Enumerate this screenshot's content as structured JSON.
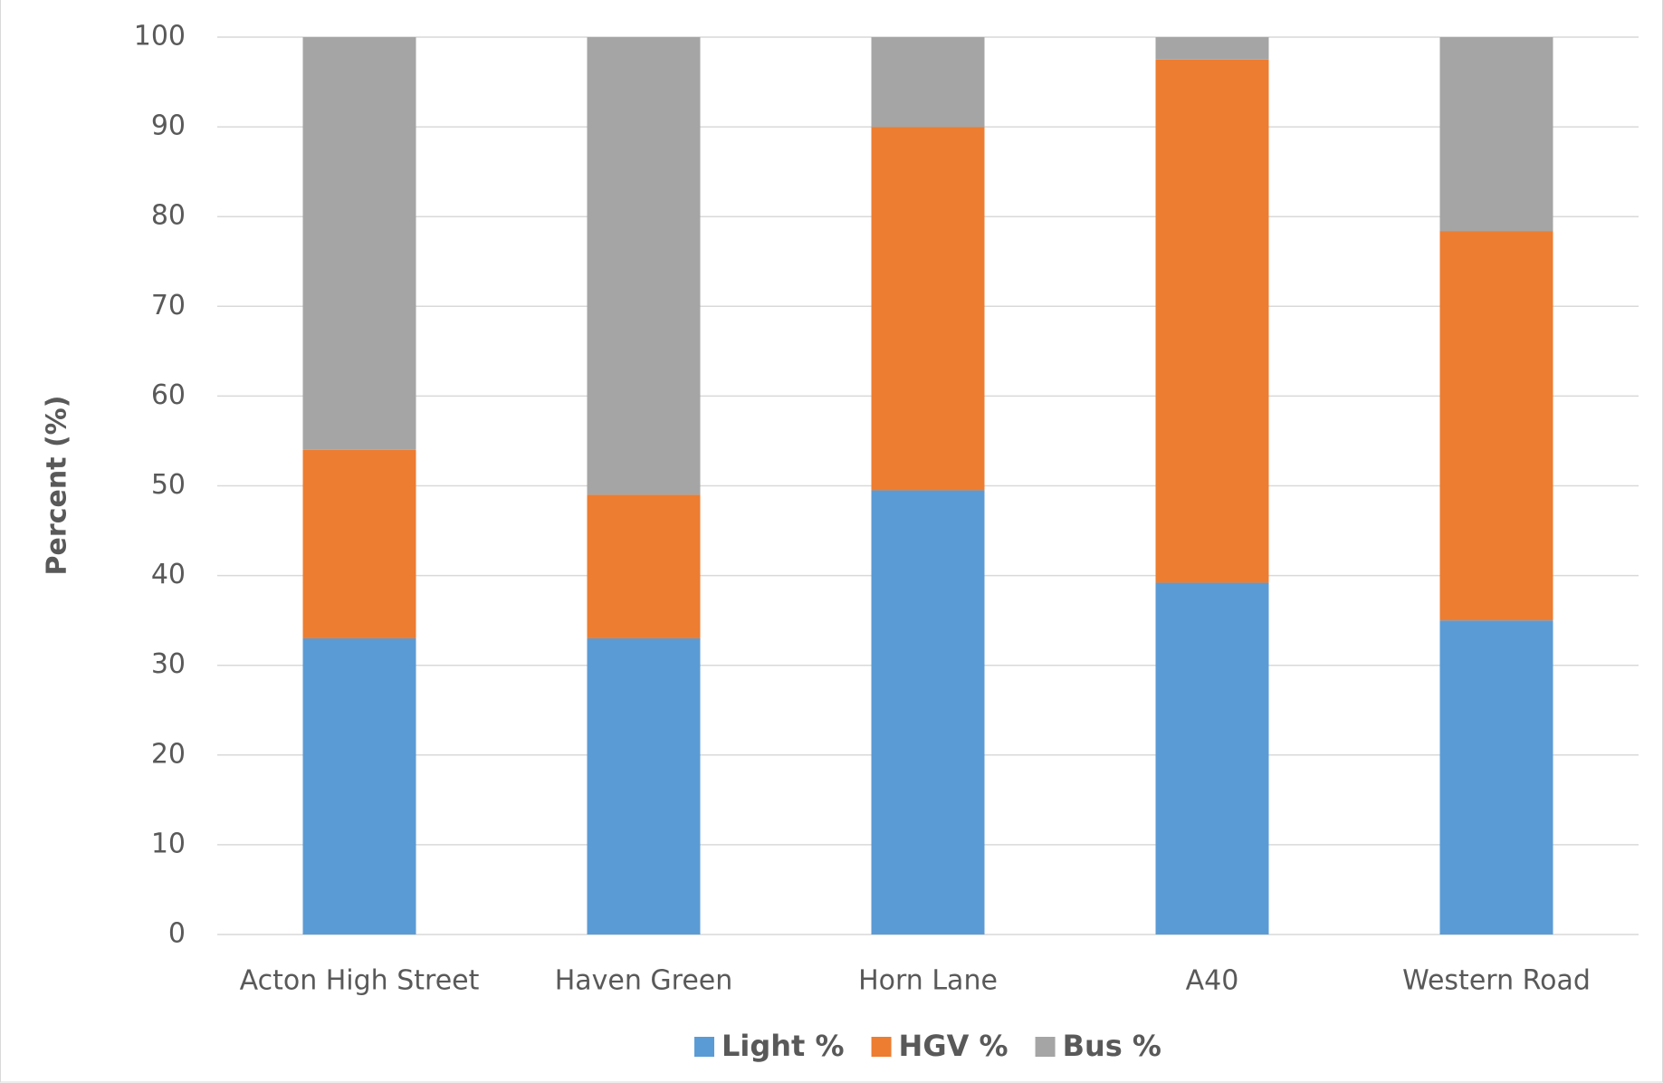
{
  "chart_data": {
    "type": "stacked_bar",
    "y_label": "Percent (%)",
    "categories": [
      "Acton High Street",
      "Haven Green",
      "Horn Lane",
      "A40",
      "Western Road"
    ],
    "series": [
      {
        "name": "Light %",
        "color": "#5b9bd5",
        "values": [
          33,
          33,
          49.5,
          39.2,
          35
        ]
      },
      {
        "name": "HGV %",
        "color": "#ed7d31",
        "values": [
          21,
          16,
          40.5,
          58.3,
          43.4
        ]
      },
      {
        "name": "Bus %",
        "color": "#a5a5a5",
        "values": [
          46,
          51,
          10,
          2.5,
          21.6
        ]
      }
    ],
    "ylim": [
      0,
      100
    ],
    "yticks": [
      0,
      10,
      20,
      30,
      40,
      50,
      60,
      70,
      80,
      90,
      100
    ],
    "grid": true,
    "legend": "bottom"
  }
}
